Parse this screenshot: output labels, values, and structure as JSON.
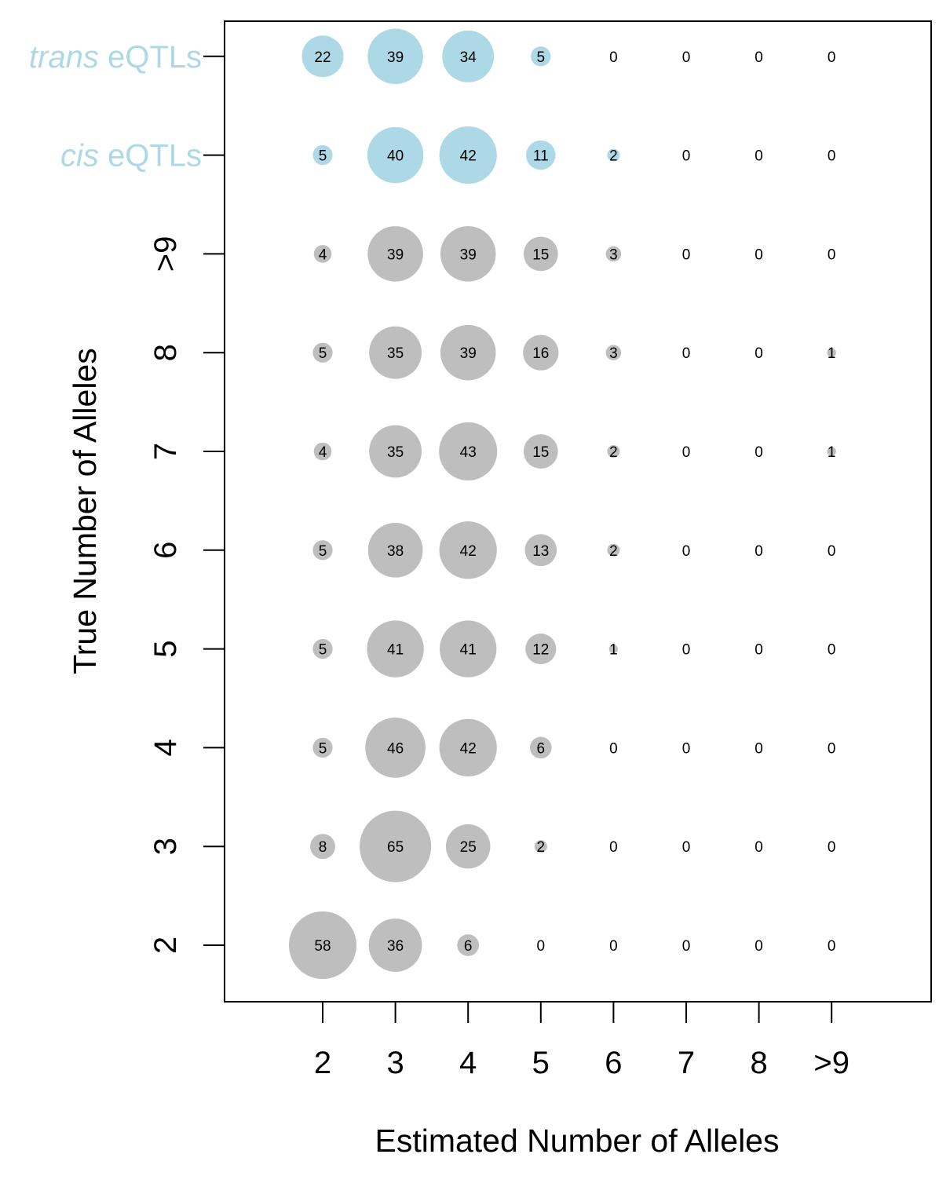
{
  "chart_data": {
    "type": "bubble",
    "xlabel": "Estimated Number of Alleles",
    "ylabel": "True Number of Alleles",
    "x_categories": [
      "2",
      "3",
      "4",
      "5",
      "6",
      "7",
      "8",
      ">9"
    ],
    "y_categories": [
      "2",
      "3",
      "4",
      "5",
      "6",
      "7",
      "8",
      ">9",
      "cis eQTLs",
      "trans eQTLs"
    ],
    "y_category_styles": [
      {
        "italic_prefix": "",
        "rest": "2",
        "color": "#000000"
      },
      {
        "italic_prefix": "",
        "rest": "3",
        "color": "#000000"
      },
      {
        "italic_prefix": "",
        "rest": "4",
        "color": "#000000"
      },
      {
        "italic_prefix": "",
        "rest": "5",
        "color": "#000000"
      },
      {
        "italic_prefix": "",
        "rest": "6",
        "color": "#000000"
      },
      {
        "italic_prefix": "",
        "rest": "7",
        "color": "#000000"
      },
      {
        "italic_prefix": "",
        "rest": "8",
        "color": "#000000"
      },
      {
        "italic_prefix": "",
        "rest": ">9",
        "color": "#000000"
      },
      {
        "italic_prefix": "cis",
        "rest": " eQTLs",
        "color": "#add8e6"
      },
      {
        "italic_prefix": "trans",
        "rest": " eQTLs",
        "color": "#add8e6"
      }
    ],
    "values": [
      [
        58,
        36,
        6,
        0,
        0,
        0,
        0,
        0
      ],
      [
        8,
        65,
        25,
        2,
        0,
        0,
        0,
        0
      ],
      [
        5,
        46,
        42,
        6,
        0,
        0,
        0,
        0
      ],
      [
        5,
        41,
        41,
        12,
        1,
        0,
        0,
        0
      ],
      [
        5,
        38,
        42,
        13,
        2,
        0,
        0,
        0
      ],
      [
        4,
        35,
        43,
        15,
        2,
        0,
        0,
        1
      ],
      [
        5,
        35,
        39,
        16,
        3,
        0,
        0,
        1
      ],
      [
        4,
        39,
        39,
        15,
        3,
        0,
        0,
        0
      ],
      [
        5,
        40,
        42,
        11,
        2,
        0,
        0,
        0
      ],
      [
        22,
        39,
        34,
        5,
        0,
        0,
        0,
        0
      ]
    ],
    "row_colors": [
      "#bebebe",
      "#bebebe",
      "#bebebe",
      "#bebebe",
      "#bebebe",
      "#bebebe",
      "#bebebe",
      "#bebebe",
      "#add8e6",
      "#add8e6"
    ],
    "bubble_size_encoding": "area proportional to value",
    "grid": false,
    "legend": "none"
  }
}
